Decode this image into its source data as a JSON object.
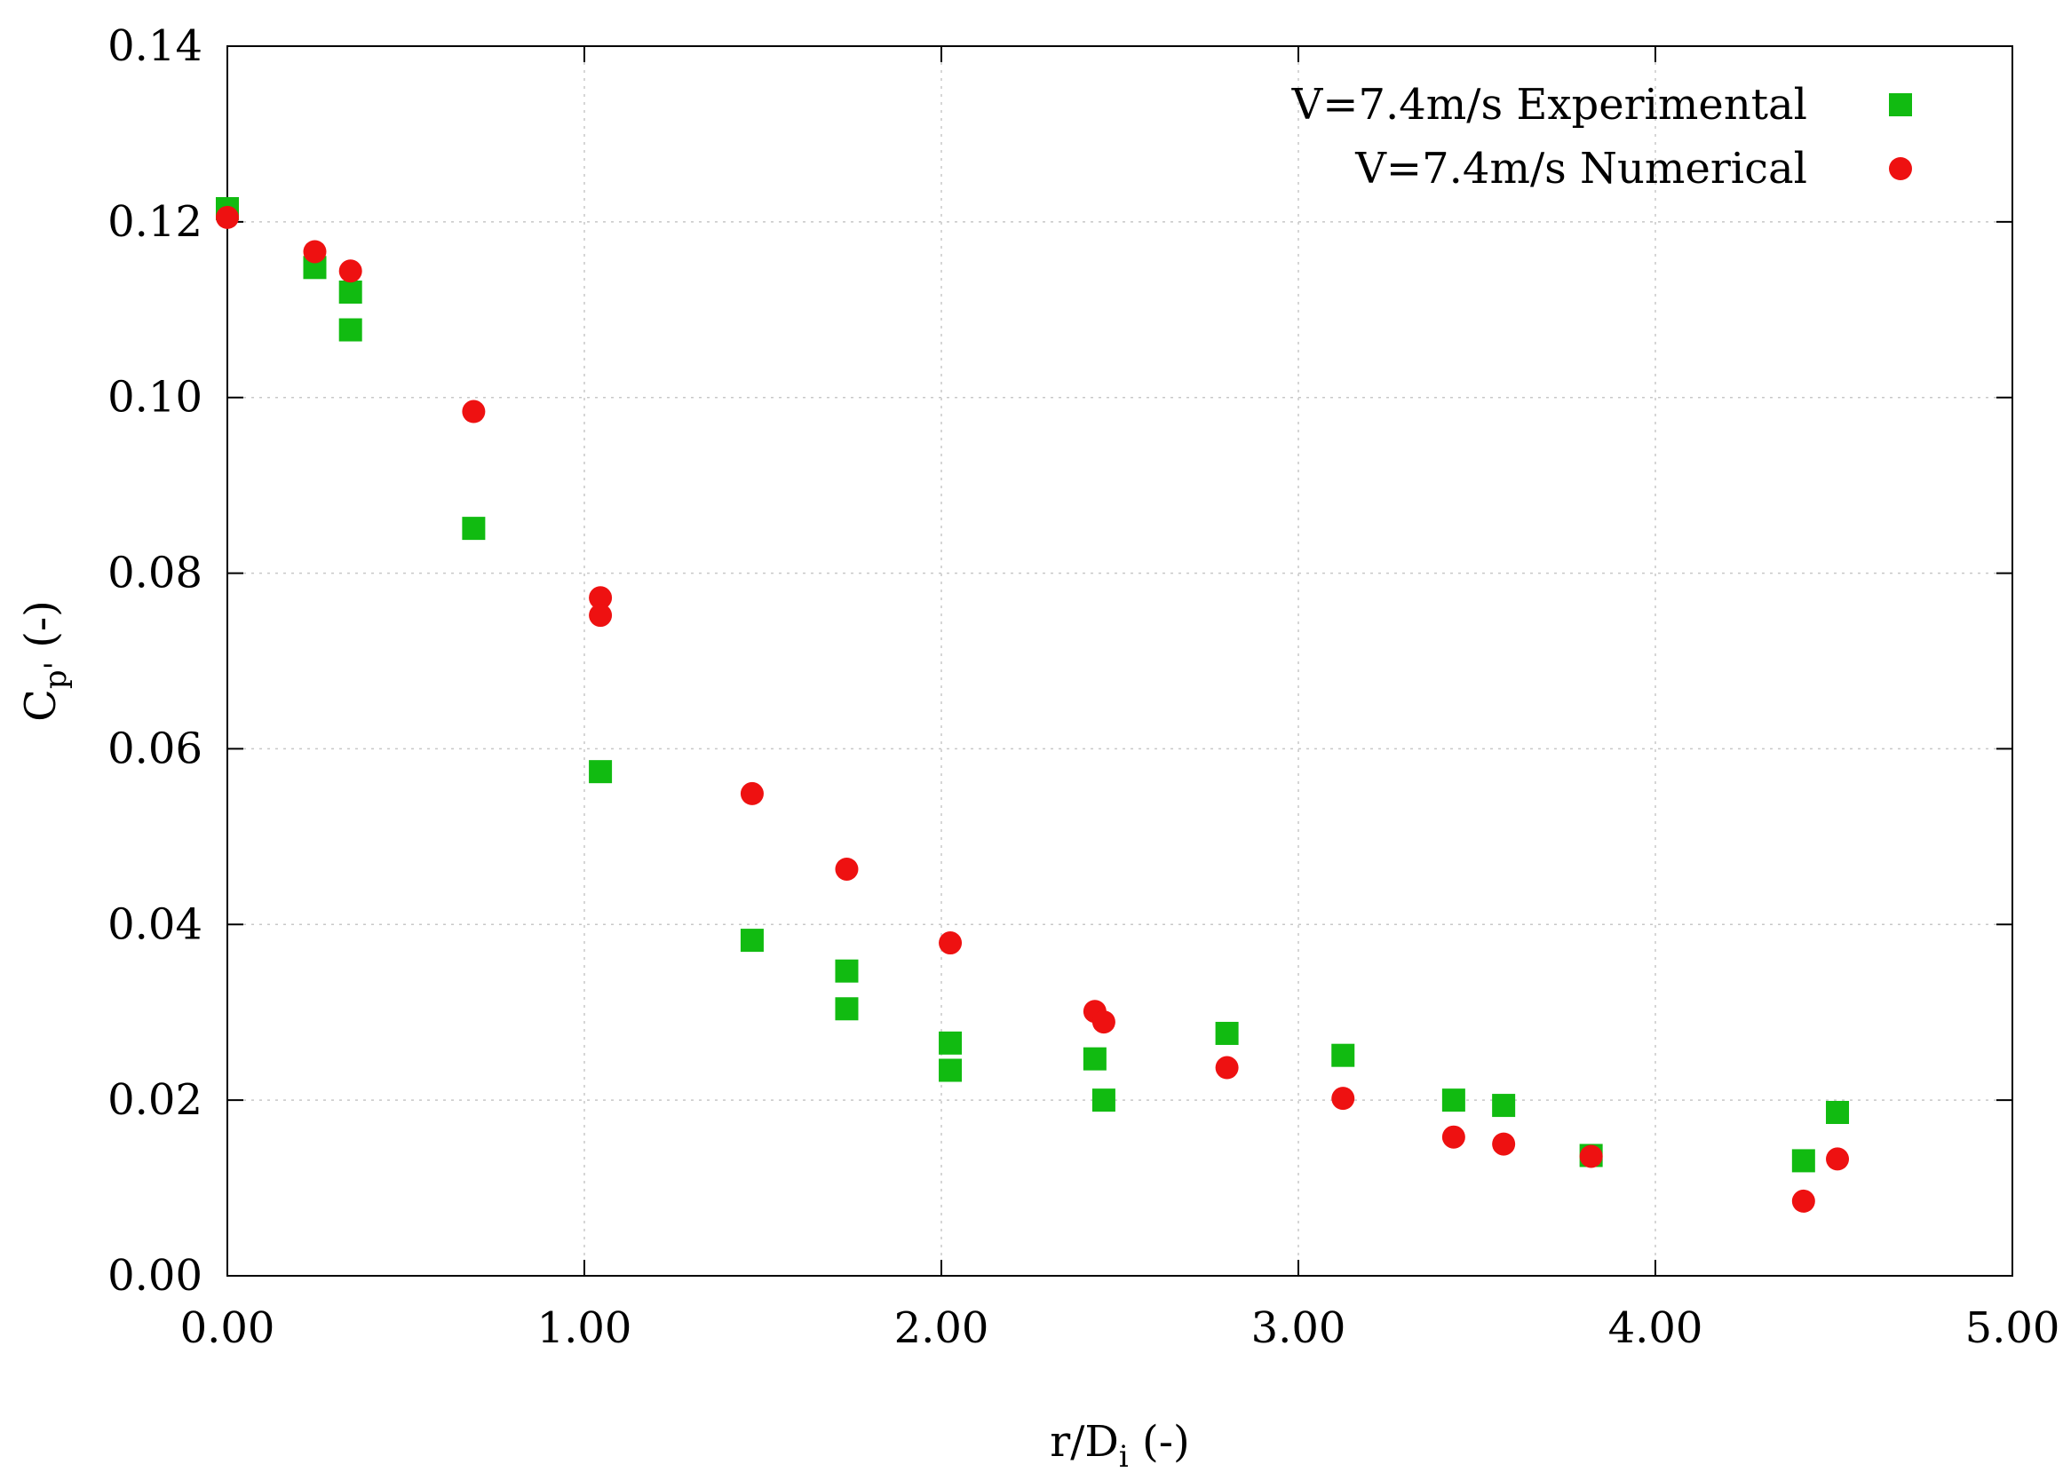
{
  "chart_data": {
    "type": "scatter",
    "xlabel": {
      "main": "r/D",
      "sub": "i",
      "unit": " (-)"
    },
    "ylabel": {
      "main": "C",
      "sub": "p'",
      "unit": " (-)"
    },
    "xlim": [
      0,
      5
    ],
    "ylim": [
      0,
      0.14
    ],
    "xticks": [
      "0.00",
      "1.00",
      "2.00",
      "3.00",
      "4.00",
      "5.00"
    ],
    "yticks": [
      "0.00",
      "0.02",
      "0.04",
      "0.06",
      "0.08",
      "0.10",
      "0.12",
      "0.14"
    ],
    "grid": true,
    "legend_position": "top-right",
    "series": [
      {
        "name": "V=7.4m/s Experimental",
        "marker": "square",
        "color": "#11bb11",
        "points": [
          [
            0.0,
            0.1215
          ],
          [
            0.245,
            0.1148
          ],
          [
            0.345,
            0.112
          ],
          [
            0.345,
            0.1077
          ],
          [
            0.69,
            0.0851
          ],
          [
            1.045,
            0.0574
          ],
          [
            1.47,
            0.0382
          ],
          [
            1.735,
            0.0347
          ],
          [
            1.735,
            0.0304
          ],
          [
            2.025,
            0.0265
          ],
          [
            2.025,
            0.0234
          ],
          [
            2.43,
            0.0247
          ],
          [
            2.455,
            0.02
          ],
          [
            2.8,
            0.0276
          ],
          [
            3.125,
            0.0251
          ],
          [
            3.435,
            0.02
          ],
          [
            3.575,
            0.0194
          ],
          [
            3.82,
            0.0137
          ],
          [
            4.415,
            0.0131
          ],
          [
            4.51,
            0.0186
          ]
        ]
      },
      {
        "name": "V=7.4m/s Numerical",
        "marker": "circle",
        "color": "#ee1111",
        "points": [
          [
            0.0,
            0.1205
          ],
          [
            0.245,
            0.1166
          ],
          [
            0.345,
            0.1144
          ],
          [
            0.69,
            0.0984
          ],
          [
            1.045,
            0.0772
          ],
          [
            1.045,
            0.0752
          ],
          [
            1.47,
            0.0549
          ],
          [
            1.735,
            0.0463
          ],
          [
            2.025,
            0.0379
          ],
          [
            2.43,
            0.0301
          ],
          [
            2.455,
            0.0289
          ],
          [
            2.8,
            0.0237
          ],
          [
            3.125,
            0.0202
          ],
          [
            3.435,
            0.0158
          ],
          [
            3.575,
            0.015
          ],
          [
            3.82,
            0.0136
          ],
          [
            4.415,
            0.0085
          ],
          [
            4.51,
            0.0133
          ]
        ]
      }
    ]
  }
}
